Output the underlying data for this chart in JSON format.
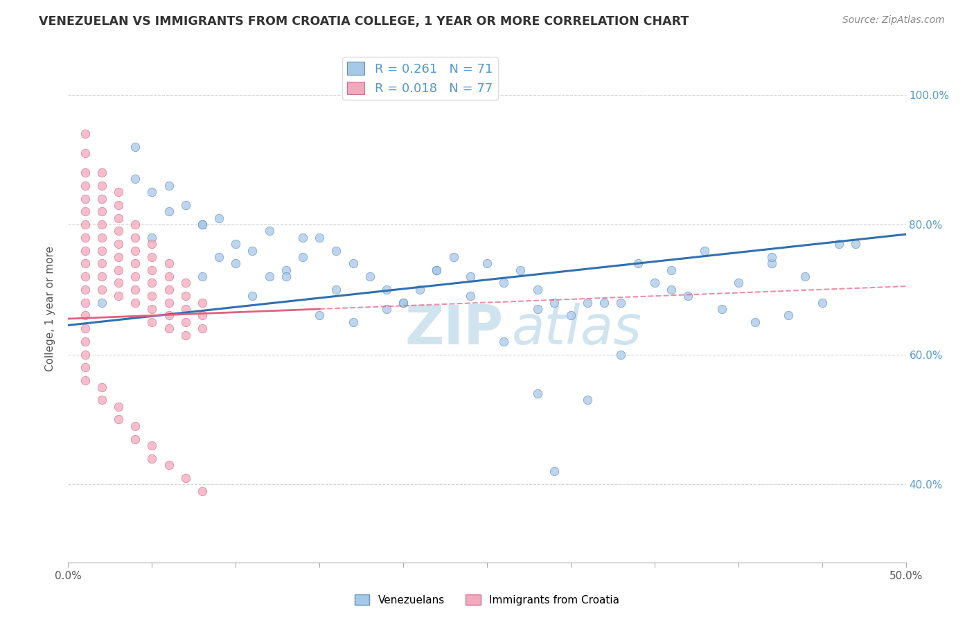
{
  "title": "VENEZUELAN VS IMMIGRANTS FROM CROATIA COLLEGE, 1 YEAR OR MORE CORRELATION CHART",
  "source": "Source: ZipAtlas.com",
  "ylabel": "College, 1 year or more",
  "y_ticks_labels": [
    "40.0%",
    "60.0%",
    "80.0%",
    "100.0%"
  ],
  "y_tick_vals": [
    0.4,
    0.6,
    0.8,
    1.0
  ],
  "xlim": [
    0.0,
    0.5
  ],
  "ylim": [
    0.28,
    1.06
  ],
  "legend_blue_r": "R = 0.261",
  "legend_blue_n": "N = 71",
  "legend_pink_r": "R = 0.018",
  "legend_pink_n": "N = 77",
  "blue_color": "#a8c8e8",
  "pink_color": "#f4a8bc",
  "blue_line_color": "#3070b0",
  "pink_line_color": "#e06080",
  "blue_edge_color": "#6090c0",
  "pink_edge_color": "#d07090",
  "grid_color": "#cccccc",
  "axis_color": "#aaaaaa",
  "title_color": "#333333",
  "source_color": "#888888",
  "ytick_color": "#5599cc",
  "xtick_color": "#555555",
  "watermark_color": "#d0e4f0",
  "legend_box_color": "#dddddd",
  "background": "#ffffff",
  "blue_x": [
    0.02,
    0.04,
    0.04,
    0.05,
    0.06,
    0.07,
    0.08,
    0.09,
    0.1,
    0.11,
    0.12,
    0.13,
    0.14,
    0.15,
    0.16,
    0.17,
    0.18,
    0.19,
    0.2,
    0.21,
    0.22,
    0.23,
    0.24,
    0.25,
    0.26,
    0.27,
    0.28,
    0.29,
    0.3,
    0.31,
    0.05,
    0.06,
    0.08,
    0.1,
    0.12,
    0.14,
    0.15,
    0.17,
    0.19,
    0.22,
    0.08,
    0.09,
    0.11,
    0.13,
    0.16,
    0.2,
    0.24,
    0.28,
    0.32,
    0.36,
    0.4,
    0.44,
    0.34,
    0.38,
    0.42,
    0.46,
    0.36,
    0.42,
    0.47,
    0.35,
    0.37,
    0.39,
    0.41,
    0.43,
    0.45,
    0.33,
    0.28,
    0.31,
    0.26,
    0.33,
    0.29
  ],
  "blue_y": [
    0.68,
    0.92,
    0.87,
    0.85,
    0.86,
    0.83,
    0.8,
    0.81,
    0.74,
    0.76,
    0.72,
    0.73,
    0.75,
    0.78,
    0.76,
    0.74,
    0.72,
    0.7,
    0.68,
    0.7,
    0.73,
    0.75,
    0.72,
    0.74,
    0.71,
    0.73,
    0.7,
    0.68,
    0.66,
    0.68,
    0.78,
    0.82,
    0.8,
    0.77,
    0.79,
    0.78,
    0.66,
    0.65,
    0.67,
    0.73,
    0.72,
    0.75,
    0.69,
    0.72,
    0.7,
    0.68,
    0.69,
    0.67,
    0.68,
    0.7,
    0.71,
    0.72,
    0.74,
    0.76,
    0.74,
    0.77,
    0.73,
    0.75,
    0.77,
    0.71,
    0.69,
    0.67,
    0.65,
    0.66,
    0.68,
    0.68,
    0.54,
    0.53,
    0.62,
    0.6,
    0.42
  ],
  "pink_x": [
    0.01,
    0.01,
    0.01,
    0.01,
    0.01,
    0.01,
    0.01,
    0.01,
    0.01,
    0.01,
    0.01,
    0.01,
    0.01,
    0.01,
    0.01,
    0.01,
    0.01,
    0.02,
    0.02,
    0.02,
    0.02,
    0.02,
    0.02,
    0.02,
    0.02,
    0.02,
    0.02,
    0.03,
    0.03,
    0.03,
    0.03,
    0.03,
    0.03,
    0.03,
    0.03,
    0.03,
    0.04,
    0.04,
    0.04,
    0.04,
    0.04,
    0.04,
    0.04,
    0.05,
    0.05,
    0.05,
    0.05,
    0.05,
    0.05,
    0.05,
    0.06,
    0.06,
    0.06,
    0.06,
    0.06,
    0.06,
    0.07,
    0.07,
    0.07,
    0.07,
    0.07,
    0.08,
    0.08,
    0.08,
    0.01,
    0.01,
    0.02,
    0.02,
    0.03,
    0.03,
    0.04,
    0.04,
    0.05,
    0.05,
    0.06,
    0.07,
    0.08
  ],
  "pink_y": [
    0.94,
    0.91,
    0.88,
    0.86,
    0.84,
    0.82,
    0.8,
    0.78,
    0.76,
    0.74,
    0.72,
    0.7,
    0.68,
    0.66,
    0.64,
    0.62,
    0.6,
    0.88,
    0.86,
    0.84,
    0.82,
    0.8,
    0.78,
    0.76,
    0.74,
    0.72,
    0.7,
    0.85,
    0.83,
    0.81,
    0.79,
    0.77,
    0.75,
    0.73,
    0.71,
    0.69,
    0.8,
    0.78,
    0.76,
    0.74,
    0.72,
    0.7,
    0.68,
    0.77,
    0.75,
    0.73,
    0.71,
    0.69,
    0.67,
    0.65,
    0.74,
    0.72,
    0.7,
    0.68,
    0.66,
    0.64,
    0.71,
    0.69,
    0.67,
    0.65,
    0.63,
    0.68,
    0.66,
    0.64,
    0.58,
    0.56,
    0.55,
    0.53,
    0.52,
    0.5,
    0.49,
    0.47,
    0.46,
    0.44,
    0.43,
    0.41,
    0.39
  ],
  "blue_line_x0": 0.0,
  "blue_line_x1": 0.5,
  "blue_line_y0": 0.645,
  "blue_line_y1": 0.785,
  "pink_line_x0": 0.0,
  "pink_line_x1": 0.5,
  "pink_line_y0": 0.655,
  "pink_line_y1": 0.705
}
